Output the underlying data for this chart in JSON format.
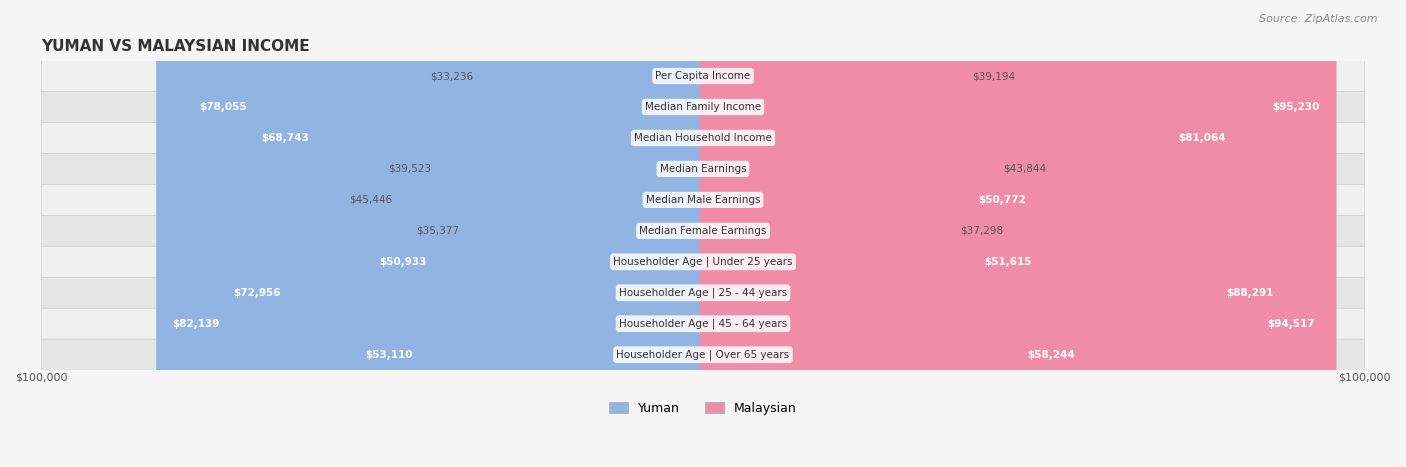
{
  "title": "YUMAN VS MALAYSIAN INCOME",
  "source": "Source: ZipAtlas.com",
  "categories": [
    "Per Capita Income",
    "Median Family Income",
    "Median Household Income",
    "Median Earnings",
    "Median Male Earnings",
    "Median Female Earnings",
    "Householder Age | Under 25 years",
    "Householder Age | 25 - 44 years",
    "Householder Age | 45 - 64 years",
    "Householder Age | Over 65 years"
  ],
  "yuman_values": [
    33236,
    78055,
    68743,
    39523,
    45446,
    35377,
    50933,
    72956,
    82139,
    53110
  ],
  "malaysian_values": [
    39194,
    95230,
    81064,
    43844,
    50772,
    37298,
    51615,
    88291,
    94517,
    58244
  ],
  "yuman_labels": [
    "$33,236",
    "$78,055",
    "$68,743",
    "$39,523",
    "$45,446",
    "$35,377",
    "$50,933",
    "$72,956",
    "$82,139",
    "$53,110"
  ],
  "malaysian_labels": [
    "$39,194",
    "$95,230",
    "$81,064",
    "$43,844",
    "$50,772",
    "$37,298",
    "$51,615",
    "$88,291",
    "$94,517",
    "$58,244"
  ],
  "max_value": 100000,
  "yuman_color": "#92b4e3",
  "malaysian_color": "#f08ca8",
  "yuman_color_dark": "#6a9fd8",
  "malaysian_color_dark": "#e8607a",
  "label_color_outside": "#555555",
  "label_color_inside": "#ffffff",
  "bg_color": "#f5f5f5",
  "bar_bg_color": "#e8e8e8",
  "row_bg_light": "#f0f0f0",
  "row_bg_dark": "#e6e6e6",
  "legend_yuman": "Yuman",
  "legend_malaysian": "Malaysian",
  "inside_threshold": 50000
}
